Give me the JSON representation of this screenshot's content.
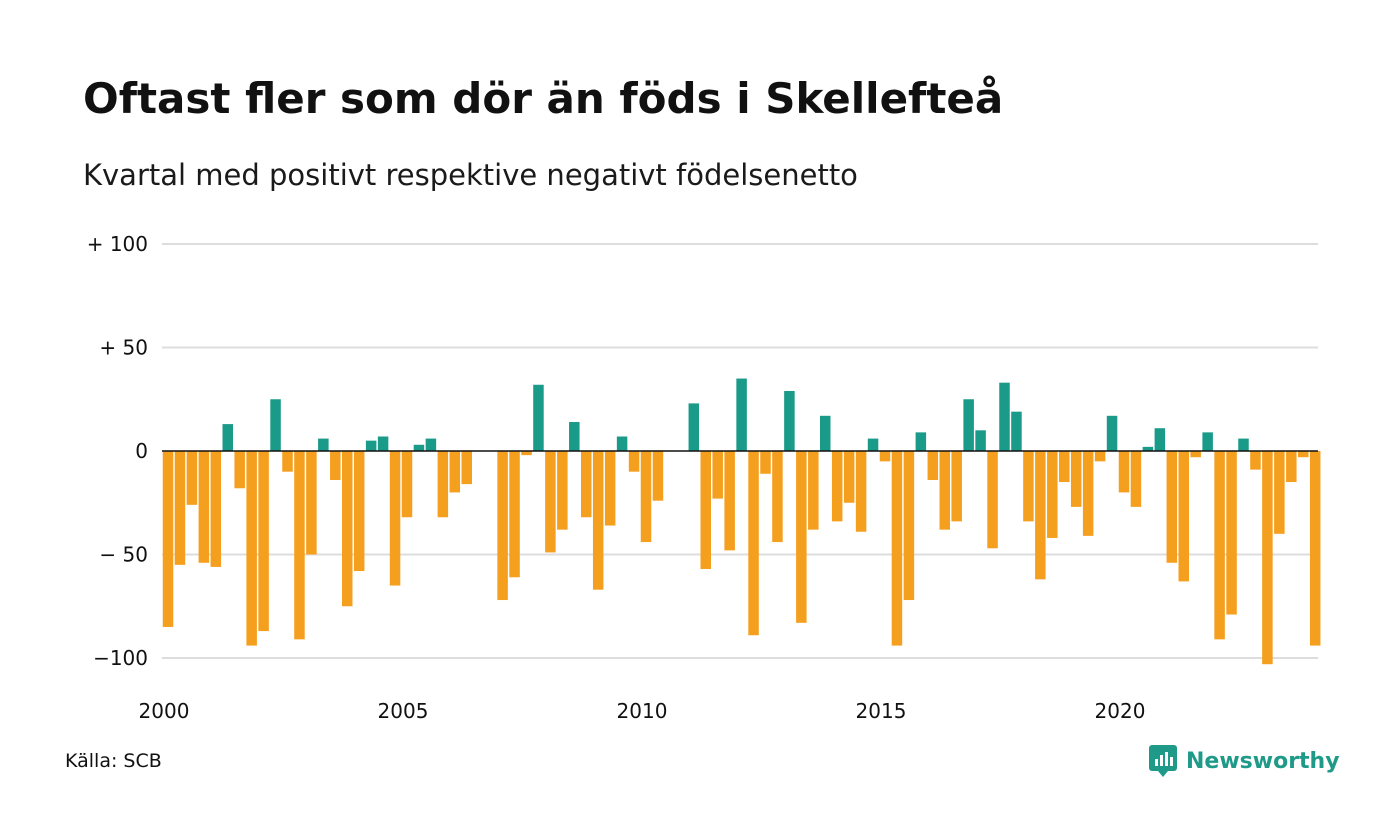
{
  "title": "Oftast fler som dör än föds i Skellefteå",
  "subtitle": "Kvartal med positivt respektive negativt födelsenetto",
  "source": "Källa: SCB",
  "brand": "Newsworthy",
  "colors": {
    "positive": "#1a9a89",
    "negative": "#f59f1f",
    "grid": "#dddddd",
    "zero": "#111111",
    "brand": "#1f9a89"
  },
  "chart_data": {
    "type": "bar",
    "title": "Oftast fler som dör än föds i Skellefteå",
    "subtitle": "Kvartal med positivt respektive negativt födelsenetto",
    "xlabel": "",
    "ylabel": "",
    "ylim": [
      -105,
      100
    ],
    "x_range": [
      2000,
      2024.25
    ],
    "grid": true,
    "y_ticks": [
      {
        "value": 100,
        "label": "+ 100"
      },
      {
        "value": 50,
        "label": "+  50"
      },
      {
        "value": 0,
        "label": "0"
      },
      {
        "value": -50,
        "label": "− 50"
      },
      {
        "value": -100,
        "label": "−100"
      }
    ],
    "x_ticks": [
      {
        "value": 2000,
        "label": "2000"
      },
      {
        "value": 2005,
        "label": "2005"
      },
      {
        "value": 2010,
        "label": "2010"
      },
      {
        "value": 2015,
        "label": "2015"
      },
      {
        "value": 2020,
        "label": "2020"
      }
    ],
    "series": [
      {
        "start_year": 2000,
        "values": [
          -85,
          -55,
          -26,
          -54,
          -56,
          13,
          -18,
          -94,
          -87,
          25,
          -10,
          -91,
          -50,
          6,
          -14,
          -75,
          -58,
          5,
          7,
          -65,
          -32,
          3,
          6,
          -32,
          -20,
          -16,
          0,
          0,
          -72,
          -61,
          -2,
          32,
          -49,
          -38,
          14,
          -32,
          -67,
          -36,
          7,
          -10,
          -44,
          -24,
          0,
          0,
          23,
          -57,
          -23,
          -48,
          35,
          -89,
          -11,
          -44,
          29,
          -83,
          -38,
          17,
          -34,
          -25,
          -39,
          6,
          -5,
          -94,
          -72,
          9,
          -14,
          -38,
          -34,
          25,
          10,
          -47,
          33,
          19,
          -34,
          -62,
          -42,
          -15,
          -27,
          -41,
          -5,
          17,
          -20,
          -27,
          2,
          11,
          -54,
          -63,
          -3,
          9,
          -91,
          -79,
          6,
          -9,
          -103,
          -40,
          -15,
          -3,
          -94
        ]
      }
    ]
  }
}
